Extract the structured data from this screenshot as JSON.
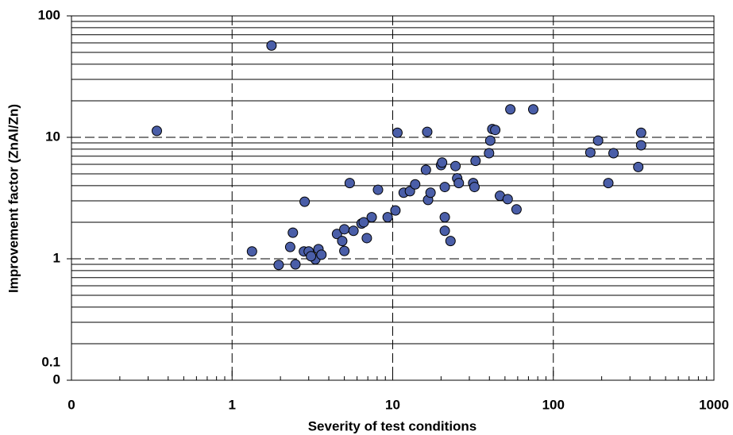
{
  "chart_data": {
    "type": "scatter",
    "x_label": "Severity of test conditions",
    "y_label": "Improvement factor (ZnAl/Zn)",
    "x_log": true,
    "y_log": true,
    "grid": true,
    "xlim": [
      0.1,
      1000
    ],
    "ylim": [
      0.1,
      100
    ],
    "xticks": [
      {
        "value": 0.1,
        "label": "0"
      },
      1,
      10,
      100,
      1000
    ],
    "yticks": [
      {
        "value": 0.1,
        "label": "0"
      },
      1,
      10,
      100
    ],
    "annotations": [
      "0.1"
    ],
    "color": "#4a5ea8",
    "x": [
      0.34,
      1.76,
      1.33,
      1.95,
      2.48,
      2.39,
      2.3,
      2.83,
      2.8,
      3.0,
      3.3,
      3.1,
      3.45,
      3.6,
      4.5,
      4.85,
      5.0,
      5.0,
      5.4,
      5.7,
      6.4,
      6.6,
      6.9,
      7.4,
      8.1,
      9.3,
      10.4,
      10.7,
      11.7,
      12.8,
      13.8,
      16.1,
      16.4,
      16.6,
      17.2,
      20.0,
      20.3,
      21.1,
      21.1,
      21.1,
      22.9,
      24.6,
      25.2,
      25.8,
      31.7,
      32.3,
      32.8,
      39.8,
      40.5,
      41.7,
      43.5,
      46.5,
      52,
      54,
      59,
      75,
      170,
      190,
      220,
      237,
      338,
      352,
      352
    ],
    "values": [
      11.3,
      57,
      1.15,
      0.89,
      0.9,
      1.64,
      1.25,
      2.95,
      1.15,
      1.15,
      0.99,
      1.05,
      1.2,
      1.08,
      1.6,
      1.4,
      1.75,
      1.16,
      4.2,
      1.7,
      1.95,
      2.0,
      1.48,
      2.2,
      3.7,
      2.2,
      2.5,
      10.9,
      3.5,
      3.6,
      4.1,
      5.4,
      11.1,
      3.05,
      3.5,
      5.9,
      6.2,
      3.9,
      2.2,
      1.7,
      1.4,
      5.8,
      4.6,
      4.2,
      4.2,
      3.9,
      6.4,
      7.4,
      9.4,
      11.7,
      11.5,
      3.3,
      3.1,
      17,
      2.55,
      17,
      7.5,
      9.4,
      4.2,
      7.4,
      5.7,
      8.6,
      10.9
    ]
  }
}
